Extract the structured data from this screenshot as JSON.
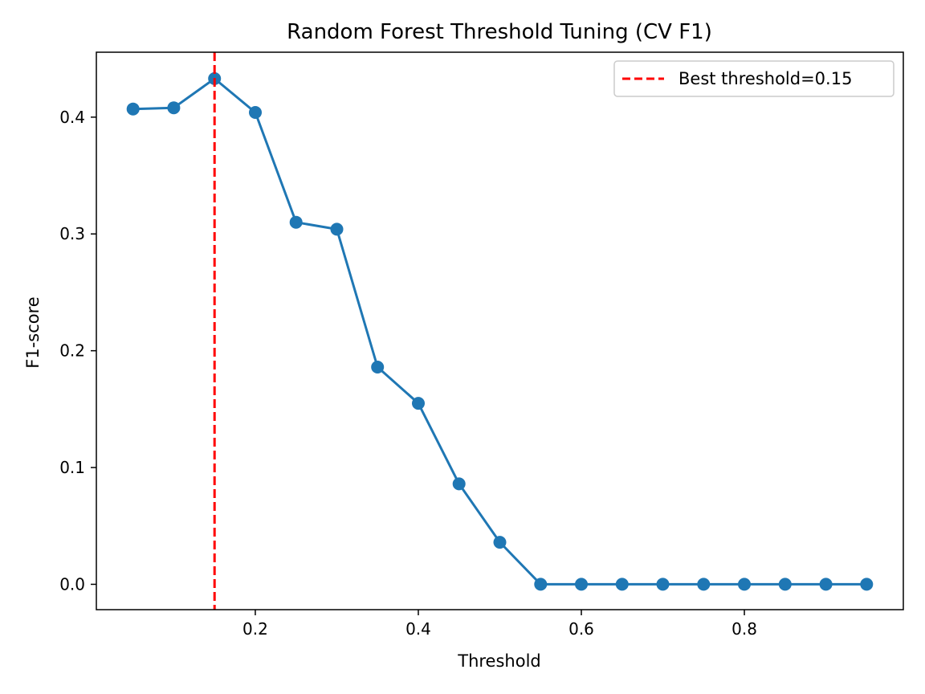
{
  "chart_data": {
    "type": "line",
    "title": "Random Forest Threshold Tuning (CV F1)",
    "xlabel": "Threshold",
    "ylabel": "F1-score",
    "xlim": [
      0.005,
      0.995
    ],
    "ylim": [
      -0.0217,
      0.4556
    ],
    "xticks": [
      0.2,
      0.4,
      0.6,
      0.8
    ],
    "xtick_labels": [
      "0.2",
      "0.4",
      "0.6",
      "0.8"
    ],
    "yticks": [
      0.0,
      0.1,
      0.2,
      0.3,
      0.4
    ],
    "ytick_labels": [
      "0.0",
      "0.1",
      "0.2",
      "0.3",
      "0.4"
    ],
    "grid": false,
    "legend_position": "top-right",
    "series": [
      {
        "color": "#1f77b4",
        "marker": "circle",
        "x": [
          0.05,
          0.1,
          0.15,
          0.2,
          0.25,
          0.3,
          0.35,
          0.4,
          0.45,
          0.5,
          0.55,
          0.6,
          0.65,
          0.7,
          0.75,
          0.8,
          0.85,
          0.9,
          0.95
        ],
        "y": [
          0.407,
          0.408,
          0.433,
          0.404,
          0.31,
          0.304,
          0.186,
          0.155,
          0.086,
          0.036,
          0.0,
          0.0,
          0.0,
          0.0,
          0.0,
          0.0,
          0.0,
          0.0,
          0.0
        ]
      }
    ],
    "reference_lines": [
      {
        "orientation": "vertical",
        "x": 0.15,
        "color": "#ff0000",
        "style": "dashed",
        "label": "Best threshold=0.15"
      }
    ]
  }
}
